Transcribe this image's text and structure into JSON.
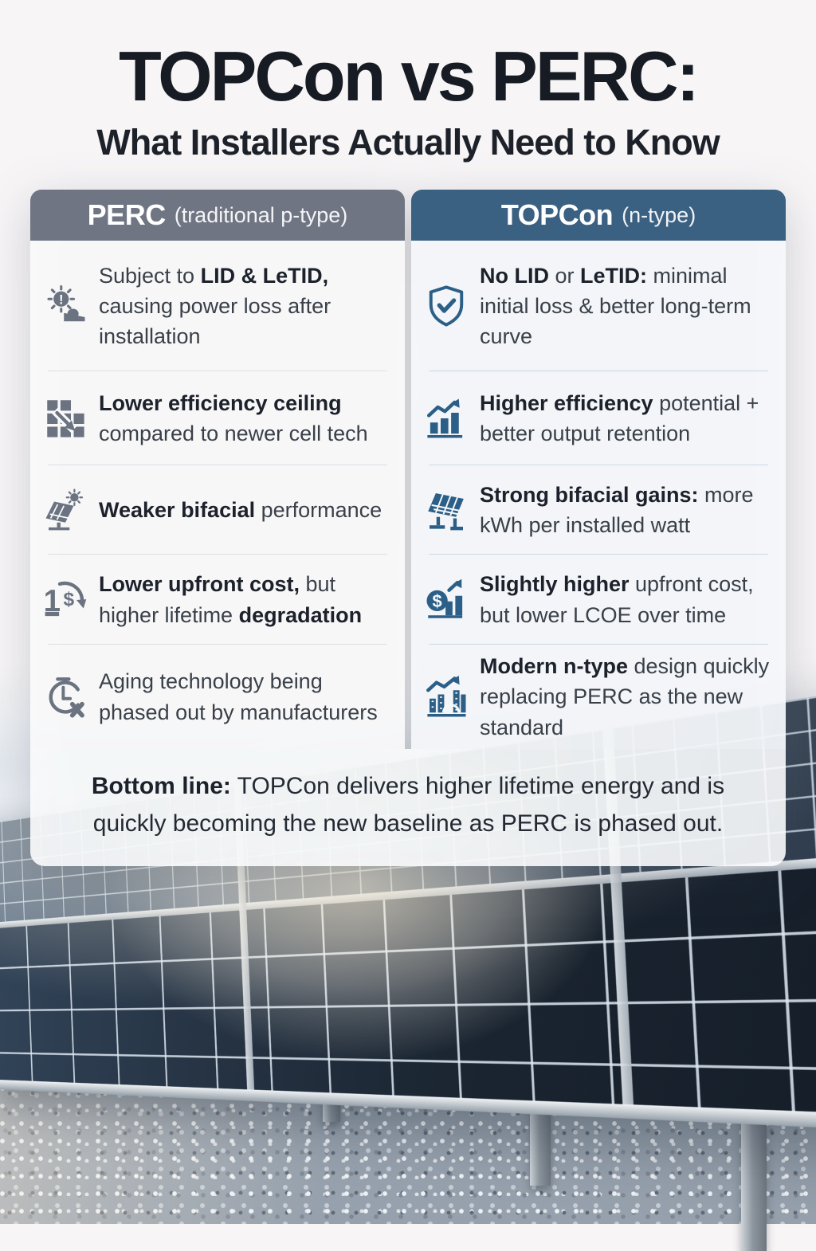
{
  "page": {
    "title": "TOPCon vs PERC:",
    "subtitle": "What Installers Actually Need to Know"
  },
  "comparison": {
    "perc": {
      "header": {
        "name": "PERC",
        "qualifier": "(traditional p-type)"
      },
      "accent": "#6f7583",
      "icon_color": "#6b7280",
      "rule_color": "#dcdfe4",
      "rows": [
        {
          "icon": "sun-warning-icon",
          "segments": [
            {
              "text": "Subject to ",
              "bold": false
            },
            {
              "text": "LID & LeTID,",
              "bold": true
            },
            {
              "text": " causing power loss after installation",
              "bold": false
            }
          ]
        },
        {
          "icon": "efficiency-grid-icon",
          "segments": [
            {
              "text": "Lower efficiency ceiling",
              "bold": true
            },
            {
              "text": " compared to newer cell tech",
              "bold": false
            }
          ]
        },
        {
          "icon": "bifacial-panel-icon",
          "segments": [
            {
              "text": "Weaker bifacial",
              "bold": true
            },
            {
              "text": " performance",
              "bold": false
            }
          ]
        },
        {
          "icon": "cost-cycle-icon",
          "segments": [
            {
              "text": "Lower upfront cost,",
              "bold": true
            },
            {
              "text": " but higher lifetime ",
              "bold": false
            },
            {
              "text": "degradation",
              "bold": true
            }
          ]
        },
        {
          "icon": "aging-clock-icon",
          "segments": [
            {
              "text": "Aging technology being phased out by manufacturers",
              "bold": false
            }
          ]
        }
      ]
    },
    "topcon": {
      "header": {
        "name": "TOPCon",
        "qualifier": "(n-type)"
      },
      "accent": "#3a6182",
      "icon_color": "#2c5f87",
      "rule_color": "#ccd9e4",
      "rows": [
        {
          "icon": "shield-check-icon",
          "segments": [
            {
              "text": "No LID",
              "bold": true
            },
            {
              "text": " or ",
              "bold": false
            },
            {
              "text": "LeTID:",
              "bold": true
            },
            {
              "text": " minimal initial loss & better long-term curve",
              "bold": false
            }
          ]
        },
        {
          "icon": "chart-up-icon",
          "segments": [
            {
              "text": "Higher efficiency",
              "bold": true
            },
            {
              "text": " potential + better output retention",
              "bold": false
            }
          ]
        },
        {
          "icon": "bifacial-gain-icon",
          "segments": [
            {
              "text": "Strong bifacial gains:",
              "bold": true
            },
            {
              "text": " more kWh per installed watt",
              "bold": false
            }
          ]
        },
        {
          "icon": "cost-up-icon",
          "segments": [
            {
              "text": "Slightly higher",
              "bold": true
            },
            {
              "text": " upfront cost, but lower LCOE over time",
              "bold": false
            }
          ]
        },
        {
          "icon": "modern-chart-icon",
          "segments": [
            {
              "text": "Modern n-type",
              "bold": true
            },
            {
              "text": " design quickly replacing PERC as the new standard",
              "bold": false
            }
          ]
        }
      ]
    }
  },
  "bottom_line": {
    "segments": [
      {
        "text": "Bottom line:",
        "bold": true
      },
      {
        "text": " TOPCon delivers higher lifetime energy and is quickly becoming the new baseline as PERC is phased out.",
        "bold": false
      }
    ]
  }
}
